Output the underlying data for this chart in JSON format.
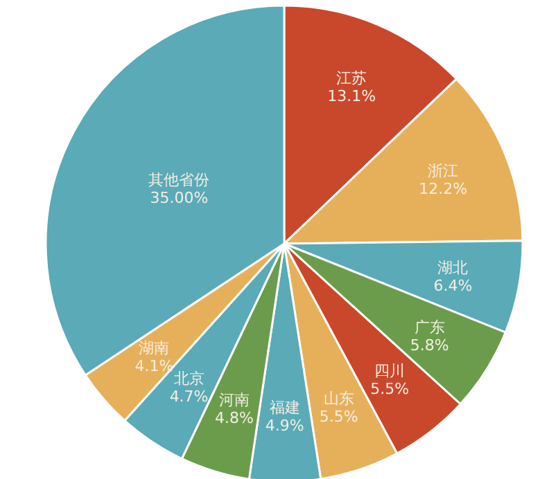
{
  "chart_data": {
    "type": "pie",
    "categories": [
      "江苏",
      "浙江",
      "湖北",
      "广东",
      "四川",
      "山东",
      "福建",
      "河南",
      "北京",
      "湖南",
      "其他省份"
    ],
    "values": [
      13.1,
      12.2,
      6.4,
      5.8,
      5.5,
      5.5,
      4.9,
      4.8,
      4.7,
      4.1,
      35
    ],
    "value_labels": [
      "13.1%",
      "12.2%",
      "6.4%",
      "5.8%",
      "5.5%",
      "5.5%",
      "4.9%",
      "4.8%",
      "4.7%",
      "4.1%",
      "35.00%"
    ],
    "colors": [
      "#c9482c",
      "#e6b05a",
      "#5aaab7",
      "#6b9c4b",
      "#c9482c",
      "#e6b05a",
      "#5aaab7",
      "#6b9c4b",
      "#5aaab7",
      "#e6b05a",
      "#5aaab7"
    ]
  }
}
